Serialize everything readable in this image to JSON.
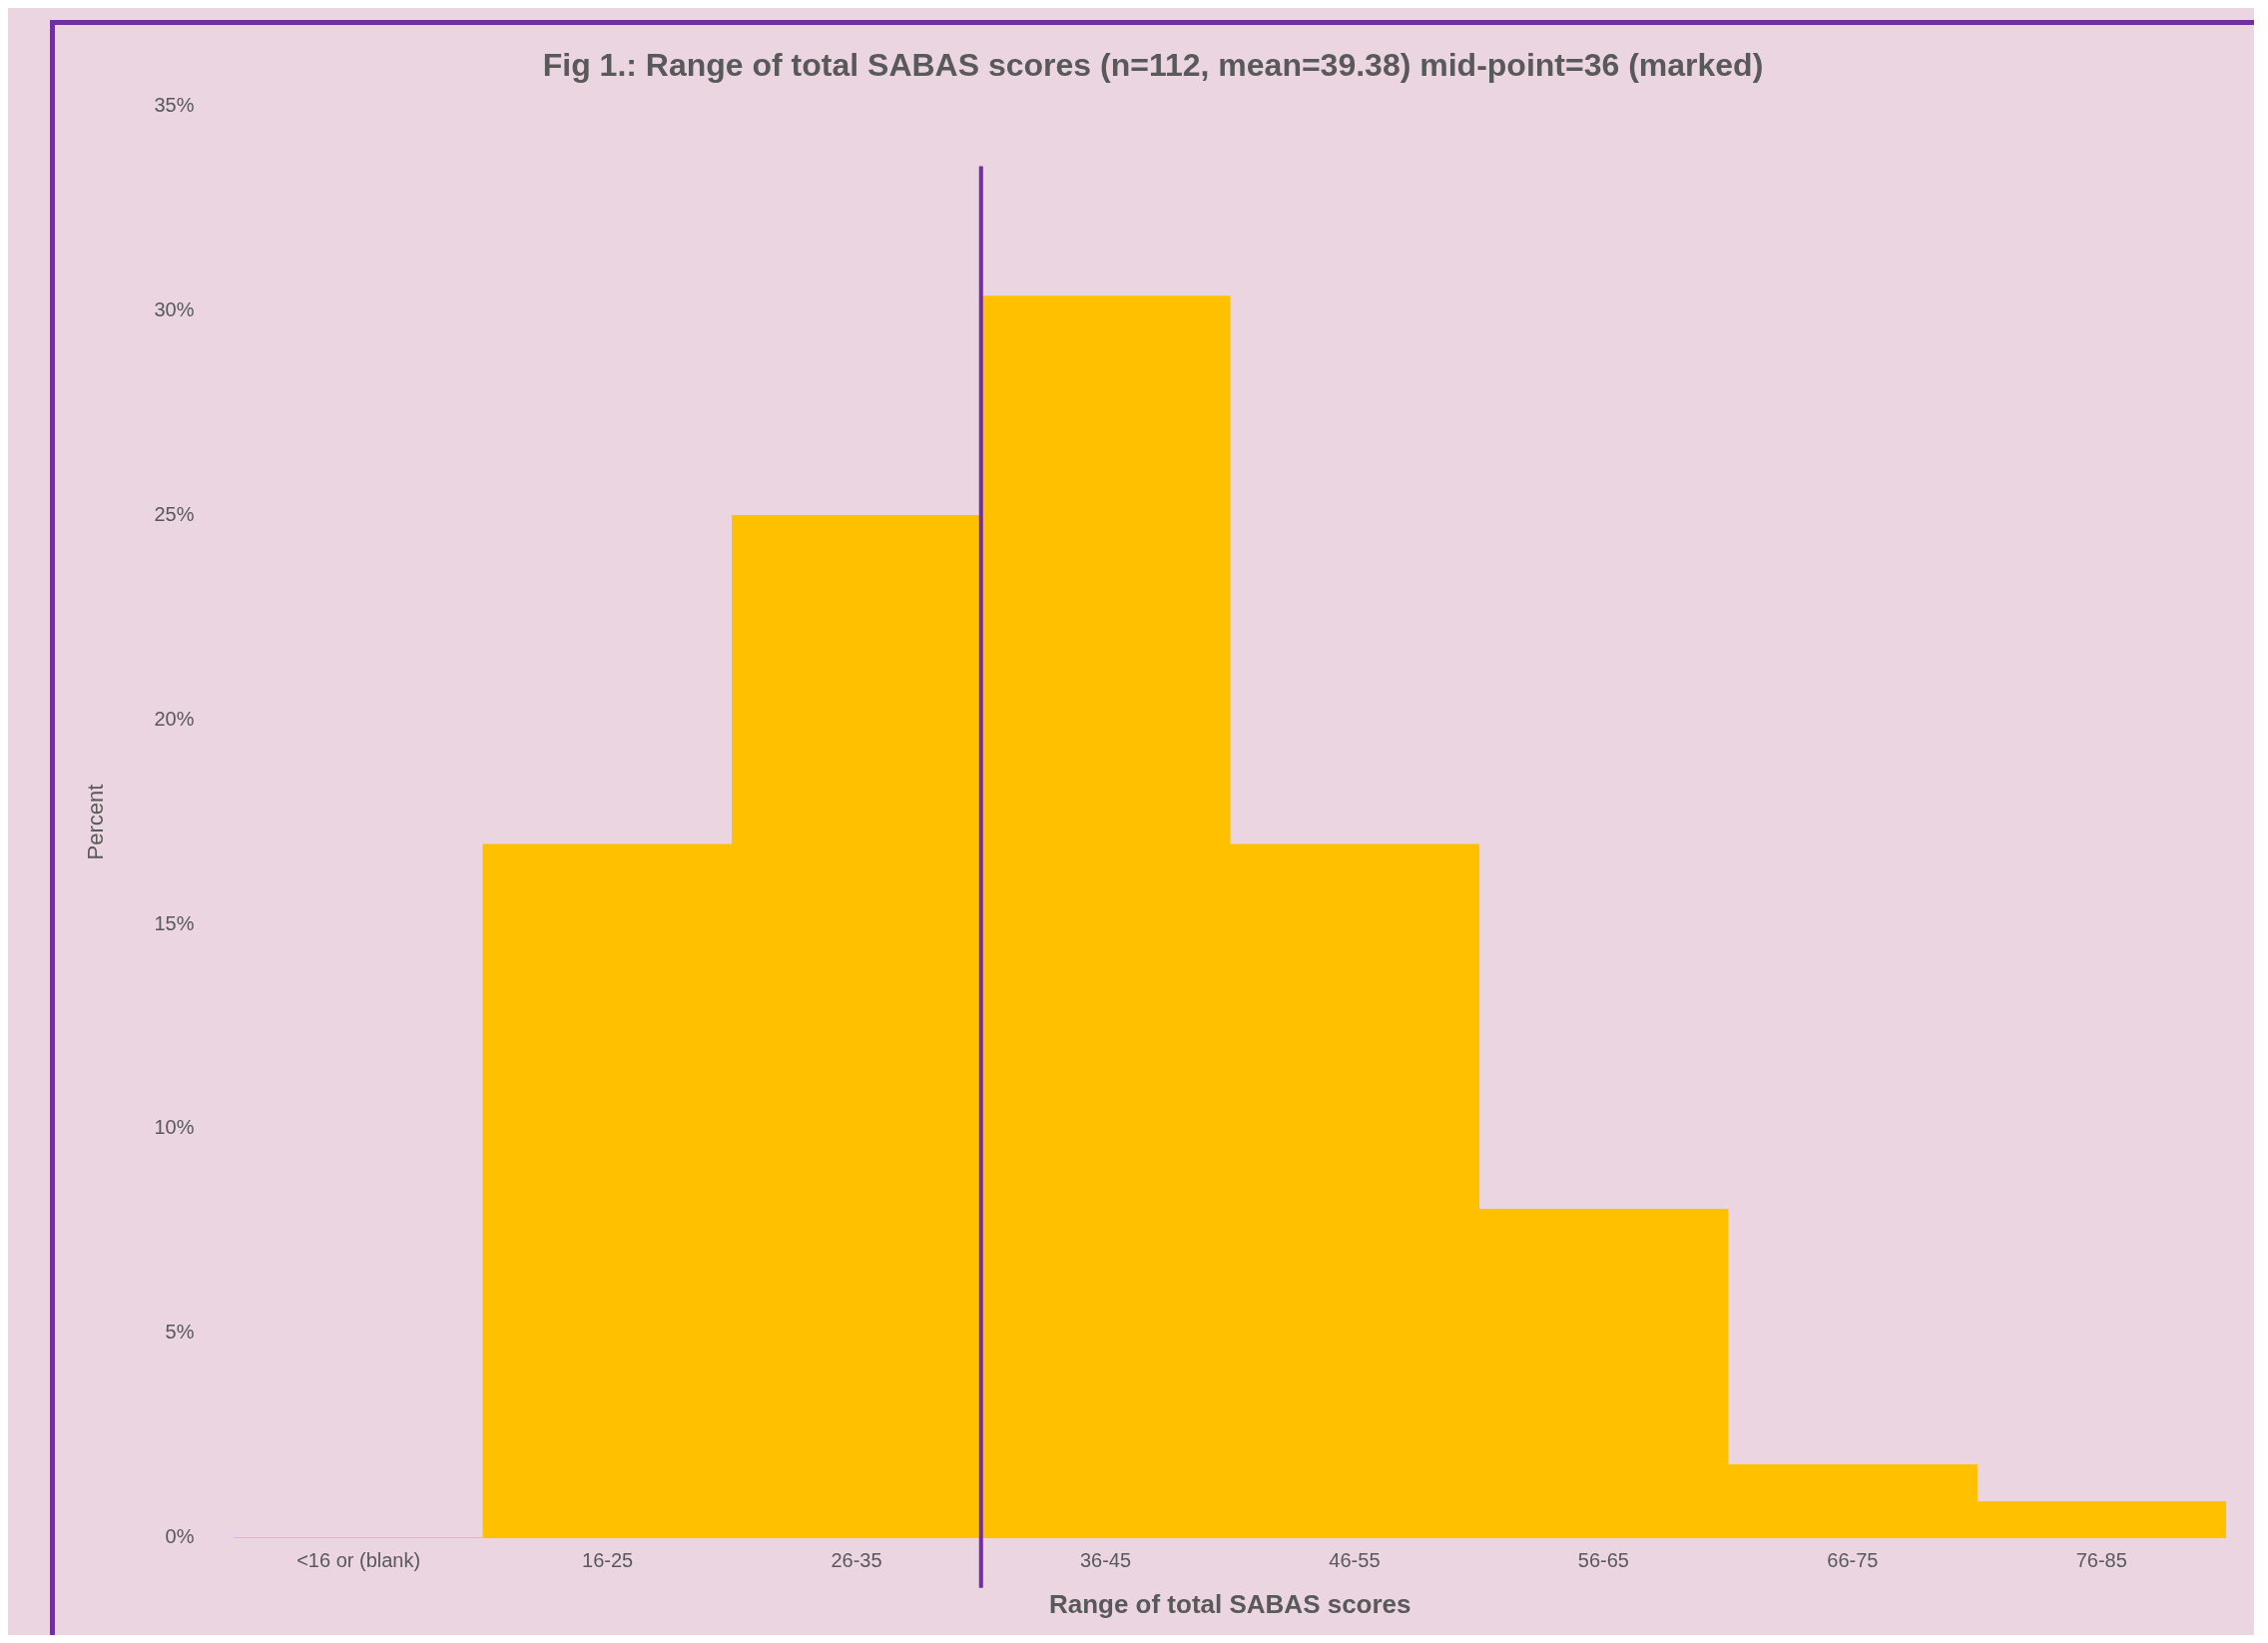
{
  "chart_data": {
    "type": "bar",
    "title": "Fig 1.: Range of total SABAS scores (n=112, mean=39.38) mid-point=36 (marked)",
    "xlabel": "Range of total SABAS scores",
    "ylabel": "Percent",
    "categories": [
      "<16 or (blank)",
      "16-25",
      "26-35",
      "36-45",
      "46-55",
      "56-65",
      "66-75",
      "76-85"
    ],
    "series": [
      {
        "color": "#ffc000",
        "values": [
          0,
          16.96,
          25.0,
          30.36,
          16.96,
          8.04,
          1.79,
          0.89
        ]
      }
    ],
    "ylim": [
      0,
      35
    ],
    "yticks": [
      {
        "value": 0,
        "label": "0%"
      },
      {
        "value": 5,
        "label": "5%"
      },
      {
        "value": 10,
        "label": "10%"
      },
      {
        "value": 15,
        "label": "15%"
      },
      {
        "value": 20,
        "label": "20%"
      },
      {
        "value": 25,
        "label": "25%"
      },
      {
        "value": 30,
        "label": "30%"
      },
      {
        "value": 35,
        "label": "35%"
      }
    ],
    "ref_lines": [
      {
        "axis": "x",
        "value": "36-45",
        "color": "#7030a0"
      }
    ],
    "grid": false,
    "legend": false
  }
}
